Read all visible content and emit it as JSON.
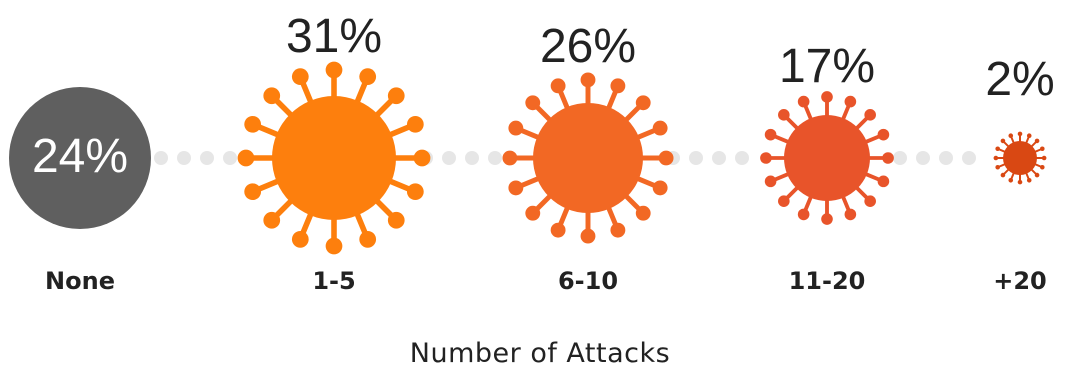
{
  "chart_data": {
    "type": "bubble",
    "xlabel": "Number of Attacks",
    "categories": [
      "None",
      "1-5",
      "6-10",
      "11-20",
      "+20"
    ],
    "values": [
      24,
      31,
      26,
      17,
      2
    ],
    "labels": [
      "24%",
      "31%",
      "26%",
      "17%",
      "2%"
    ],
    "unit": "%",
    "colors": [
      "#5f5f5f",
      "#fd7f0d",
      "#f26824",
      "#e8542a",
      "#d94813"
    ],
    "connector_color": "#e6e6e6",
    "markers": [
      "circle",
      "virus-icon",
      "virus-icon",
      "virus-icon",
      "virus-icon"
    ]
  }
}
